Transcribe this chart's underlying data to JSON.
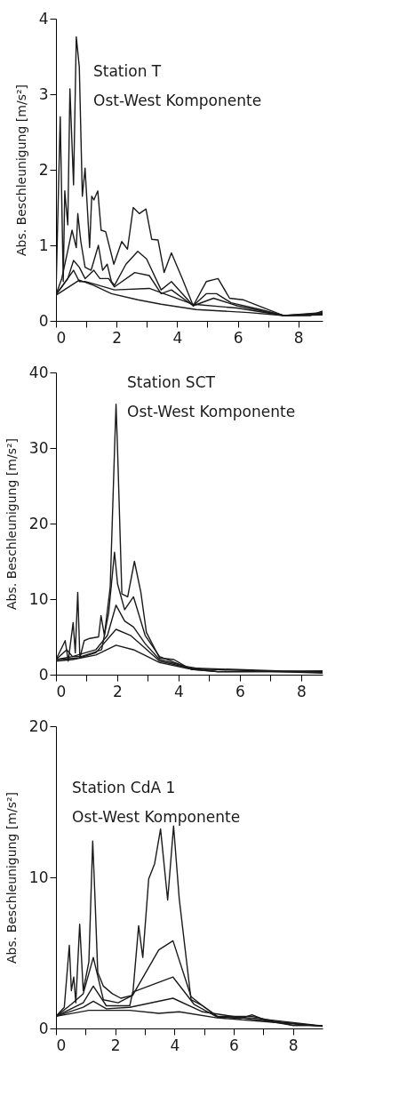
{
  "chart_data": [
    {
      "type": "line",
      "ylabel": "Abs. Beschleunigung [m/s²]",
      "annotations": [
        "Station T",
        "Ost-West Komponente"
      ],
      "xlim": [
        0,
        8.8
      ],
      "ylim": [
        0,
        4
      ],
      "xticks": [
        0,
        {
          "value": 1,
          "label": null
        },
        2,
        {
          "value": 3,
          "label": null
        },
        4,
        {
          "value": 5,
          "label": null
        },
        6,
        {
          "value": 7,
          "label": null
        },
        8
      ],
      "yticks": [
        0,
        1,
        2,
        3,
        4
      ],
      "grid": false,
      "series": [
        {
          "color": "#1a1a1a",
          "x": [
            0,
            0.14,
            0.24,
            0.29,
            0.39,
            0.46,
            0.58,
            0.67,
            0.77,
            0.87,
            0.96,
            1.11,
            1.18,
            1.25,
            1.38,
            1.49,
            1.64,
            1.91,
            2.17,
            2.36,
            2.55,
            2.75,
            2.97,
            3.16,
            3.37,
            3.57,
            3.81,
            4.17,
            4.53,
            4.96,
            5.35,
            5.73,
            6.17,
            6.75,
            7.52,
            8.39,
            8.8
          ],
          "values": [
            0.35,
            2.7,
            0.52,
            1.72,
            1.27,
            3.07,
            1.8,
            3.76,
            3.36,
            1.65,
            2.02,
            0.97,
            1.65,
            1.6,
            1.72,
            1.2,
            1.18,
            0.75,
            1.05,
            0.95,
            1.5,
            1.42,
            1.48,
            1.08,
            1.07,
            0.64,
            0.9,
            0.56,
            0.2,
            0.52,
            0.56,
            0.3,
            0.28,
            0.19,
            0.07,
            0.07,
            0.13
          ]
        },
        {
          "color": "#1a1a1a",
          "x": [
            0,
            0.19,
            0.39,
            0.53,
            0.67,
            0.72,
            0.82,
            0.96,
            1.16,
            1.4,
            1.54,
            1.69,
            1.83,
            1.93,
            2.31,
            2.7,
            2.99,
            3.47,
            3.81,
            4.53,
            4.96,
            5.3,
            5.78,
            6.75,
            7.52,
            8.8
          ],
          "values": [
            0.35,
            0.56,
            0.93,
            1.2,
            0.97,
            1.42,
            1.05,
            0.71,
            0.67,
            1.0,
            0.67,
            0.75,
            0.52,
            0.47,
            0.75,
            0.92,
            0.82,
            0.41,
            0.52,
            0.2,
            0.36,
            0.36,
            0.24,
            0.15,
            0.07,
            0.11
          ]
        },
        {
          "color": "#1a1a1a",
          "x": [
            0,
            0.39,
            0.58,
            0.77,
            0.96,
            1.25,
            1.45,
            1.74,
            1.93,
            2.6,
            3.08,
            3.47,
            3.81,
            4.53,
            5.2,
            5.98,
            7.52,
            8.8
          ],
          "values": [
            0.35,
            0.56,
            0.8,
            0.71,
            0.56,
            0.67,
            0.56,
            0.56,
            0.45,
            0.64,
            0.6,
            0.36,
            0.41,
            0.2,
            0.3,
            0.2,
            0.07,
            0.1
          ]
        },
        {
          "color": "#1a1a1a",
          "x": [
            0,
            0.19,
            0.58,
            0.77,
            0.96,
            1.25,
            1.93,
            3.08,
            4.53,
            5.98,
            7.52,
            8.8
          ],
          "values": [
            0.35,
            0.45,
            0.67,
            0.52,
            0.52,
            0.49,
            0.41,
            0.43,
            0.22,
            0.17,
            0.07,
            0.09
          ]
        },
        {
          "color": "#1a1a1a",
          "x": [
            0,
            0.77,
            1.25,
            1.83,
            2.7,
            3.47,
            4.63,
            6.36,
            7.52,
            8.8
          ],
          "values": [
            0.34,
            0.54,
            0.47,
            0.36,
            0.28,
            0.22,
            0.15,
            0.11,
            0.07,
            0.08
          ]
        }
      ]
    },
    {
      "type": "line",
      "ylabel": "Abs. Beschleunigung [m/s²]",
      "annotations": [
        "Station SCT",
        "Ost-West Komponente"
      ],
      "xlim": [
        0,
        8.7
      ],
      "ylim": [
        0,
        40
      ],
      "xticks": [
        0,
        {
          "value": 1,
          "label": null
        },
        2,
        {
          "value": 3,
          "label": null
        },
        4,
        {
          "value": 5,
          "label": null
        },
        6,
        {
          "value": 7,
          "label": null
        },
        8
      ],
      "yticks": [
        0,
        10,
        20,
        30,
        40
      ],
      "grid": false,
      "series": [
        {
          "color": "#1a1a1a",
          "x": [
            0,
            0.3,
            0.4,
            0.56,
            0.63,
            0.71,
            0.78,
            0.92,
            1.1,
            1.39,
            1.47,
            1.58,
            1.77,
            1.91,
            1.96,
            2.01,
            2.15,
            2.34,
            2.56,
            2.77,
            2.95,
            3.38,
            3.85,
            4.23,
            4.42,
            5.27,
            8.7
          ],
          "values": [
            2,
            4.5,
            1.8,
            6.9,
            2.9,
            10.9,
            2.2,
            4.5,
            4.8,
            5,
            7.8,
            5.2,
            11.6,
            29.7,
            35.8,
            29.7,
            10.7,
            10.3,
            15,
            10.9,
            5.6,
            2.2,
            2,
            1.1,
            0.7,
            0.4,
            0.5
          ]
        },
        {
          "color": "#1a1a1a",
          "x": [
            0,
            0.35,
            0.54,
            0.82,
            1.2,
            1.49,
            1.72,
            1.91,
            2.01,
            2.24,
            2.53,
            2.91,
            3.38,
            4.14,
            4.42,
            5.27,
            8.7
          ],
          "values": [
            2,
            3.3,
            2.4,
            2.4,
            2.9,
            3.3,
            8.2,
            16.2,
            12,
            8.6,
            10.3,
            5.2,
            2.4,
            1.2,
            0.7,
            0.4,
            0.4
          ]
        },
        {
          "color": "#1a1a1a",
          "x": [
            0,
            0.54,
            1.3,
            1.68,
            1.96,
            2.24,
            2.53,
            2.91,
            3.38,
            4.23,
            5.27,
            8.7
          ],
          "values": [
            2,
            2.4,
            3.3,
            5.2,
            9.2,
            7.1,
            6.3,
            4.1,
            2,
            1.1,
            0.4,
            0.4
          ]
        },
        {
          "color": "#1a1a1a",
          "x": [
            0,
            0.73,
            1.3,
            1.96,
            2.43,
            2.91,
            3.38,
            4.33,
            8.7
          ],
          "values": [
            2,
            2.2,
            2.9,
            6,
            5.2,
            3.5,
            1.8,
            0.9,
            0.3
          ]
        },
        {
          "color": "#1a1a1a",
          "x": [
            0,
            0.54,
            1.3,
            1.96,
            2.53,
            3.38,
            4.33,
            8.7
          ],
          "values": [
            1.8,
            2,
            2.6,
            3.9,
            3.3,
            1.6,
            0.8,
            0.2
          ]
        }
      ]
    },
    {
      "type": "line",
      "ylabel": "Abs. Beschleunigung [m/s²]",
      "annotations": [
        "Station CdA 1",
        "Ost-West Komponente"
      ],
      "xlim": [
        0,
        9
      ],
      "ylim": [
        0,
        20
      ],
      "xticks": [
        0,
        {
          "value": 1,
          "label": null
        },
        2,
        {
          "value": 3,
          "label": null
        },
        4,
        {
          "value": 5,
          "label": null
        },
        6,
        {
          "value": 7,
          "label": null
        },
        8
      ],
      "yticks": [
        0,
        10,
        20
      ],
      "grid": false,
      "series": [
        {
          "color": "#1a1a1a",
          "x": [
            0,
            0.28,
            0.45,
            0.52,
            0.6,
            0.67,
            0.8,
            0.92,
            1.11,
            1.24,
            1.31,
            1.41,
            1.6,
            1.9,
            2.19,
            2.59,
            2.79,
            2.93,
            3.13,
            3.33,
            3.53,
            3.77,
            3.97,
            4.16,
            4.56,
            4.95,
            5.44,
            6.23,
            6.62,
            7.12,
            8.0,
            9.0
          ],
          "values": [
            0.8,
            1.4,
            5.5,
            2.5,
            3.4,
            1.7,
            6.9,
            2.5,
            4.4,
            12.4,
            9,
            3.7,
            2.8,
            2.3,
            2,
            2.2,
            6.8,
            4.7,
            9.9,
            10.9,
            13.2,
            8.5,
            13.4,
            8.6,
            1.9,
            1.5,
            0.8,
            0.65,
            0.9,
            0.5,
            0.2,
            0.2
          ]
        },
        {
          "color": "#1a1a1a",
          "x": [
            0,
            0.52,
            0.92,
            1.26,
            1.6,
            2.1,
            2.59,
            3.47,
            3.95,
            4.56,
            4.95,
            5.44,
            6.62,
            8.0,
            9.0
          ],
          "values": [
            0.8,
            1.6,
            2.3,
            4.7,
            1.9,
            1.7,
            2.2,
            5.2,
            5.8,
            2.1,
            1.5,
            0.8,
            0.8,
            0.2,
            0.2
          ]
        },
        {
          "color": "#1a1a1a",
          "x": [
            0,
            0.92,
            1.26,
            1.7,
            2.49,
            2.59,
            3.95,
            4.66,
            5.44,
            6.62,
            9.0
          ],
          "values": [
            0.8,
            1.7,
            2.8,
            1.5,
            1.5,
            2.4,
            3.4,
            1.6,
            0.75,
            0.7,
            0.17
          ]
        },
        {
          "color": "#1a1a1a",
          "x": [
            0,
            0.92,
            1.26,
            1.7,
            2.49,
            3.95,
            4.95,
            6.62,
            9.0
          ],
          "values": [
            0.8,
            1.4,
            1.8,
            1.3,
            1.4,
            2,
            1.1,
            0.6,
            0.15
          ]
        },
        {
          "color": "#1a1a1a",
          "x": [
            0,
            1.11,
            2.49,
            3.47,
            4.16,
            5.44,
            7.41,
            9.0
          ],
          "values": [
            0.8,
            1.2,
            1.2,
            1,
            1.1,
            0.7,
            0.4,
            0.15
          ]
        }
      ]
    }
  ]
}
